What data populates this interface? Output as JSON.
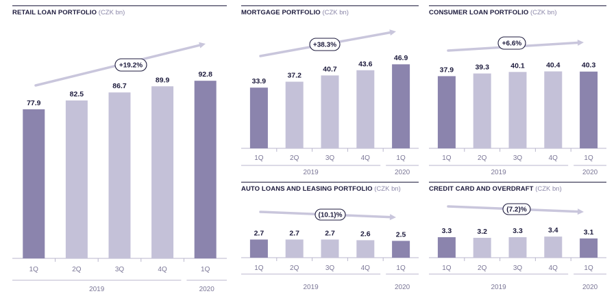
{
  "colors": {
    "bar_light": "#c4c1d8",
    "bar_dark": "#8b84ad",
    "arrow": "#c9c6dc",
    "axis": "#b9b6cc",
    "text": "#1c1a3c"
  },
  "chart_data": [
    {
      "id": "retail",
      "type": "bar",
      "title": "RETAIL LOAN PORTFOLIO",
      "unit": "(CZK bn)",
      "categories": [
        "1Q",
        "2Q",
        "3Q",
        "4Q",
        "1Q"
      ],
      "values": [
        77.9,
        82.5,
        86.7,
        89.9,
        92.8
      ],
      "value_labels": [
        "77.9",
        "82.5",
        "86.7",
        "89.9",
        "92.8"
      ],
      "highlight": [
        true,
        false,
        false,
        false,
        true
      ],
      "year_groups": [
        {
          "label": "2019",
          "span": 4
        },
        {
          "label": "2020",
          "span": 1
        }
      ],
      "growth": "+19.2%",
      "ylim": [
        0,
        100
      ]
    },
    {
      "id": "mortgage",
      "type": "bar",
      "title": "MORTGAGE PORTFOLIO",
      "unit": "(CZK bn)",
      "categories": [
        "1Q",
        "2Q",
        "3Q",
        "4Q",
        "1Q"
      ],
      "values": [
        33.9,
        37.2,
        40.7,
        43.6,
        46.9
      ],
      "value_labels": [
        "33.9",
        "37.2",
        "40.7",
        "43.6",
        "46.9"
      ],
      "highlight": [
        true,
        false,
        false,
        false,
        true
      ],
      "year_groups": [
        {
          "label": "2019",
          "span": 4
        },
        {
          "label": "2020",
          "span": 1
        }
      ],
      "growth": "+38.3%",
      "ylim": [
        0,
        50
      ]
    },
    {
      "id": "consumer",
      "type": "bar",
      "title": "CONSUMER LOAN PORTFOLIO",
      "unit": "(CZK bn)",
      "categories": [
        "1Q",
        "2Q",
        "3Q",
        "4Q",
        "1Q"
      ],
      "values": [
        37.9,
        39.3,
        40.1,
        40.4,
        40.3
      ],
      "value_labels": [
        "37.9",
        "39.3",
        "40.1",
        "40.4",
        "40.3"
      ],
      "highlight": [
        true,
        false,
        false,
        false,
        true
      ],
      "year_groups": [
        {
          "label": "2019",
          "span": 4
        },
        {
          "label": "2020",
          "span": 1
        }
      ],
      "growth": "+6.6%",
      "ylim": [
        0,
        42
      ]
    },
    {
      "id": "auto",
      "type": "bar",
      "title": "AUTO LOANS AND LEASING PORTFOLIO",
      "unit": "(CZK bn)",
      "categories": [
        "1Q",
        "2Q",
        "3Q",
        "4Q",
        "1Q"
      ],
      "values": [
        2.7,
        2.7,
        2.7,
        2.6,
        2.5
      ],
      "value_labels": [
        "2.7",
        "2.7",
        "2.7",
        "2.6",
        "2.5"
      ],
      "highlight": [
        true,
        false,
        false,
        false,
        true
      ],
      "year_groups": [
        {
          "label": "2019",
          "span": 4
        },
        {
          "label": "2020",
          "span": 1
        }
      ],
      "growth": "(10.1)%",
      "ylim": [
        0,
        6
      ]
    },
    {
      "id": "credit",
      "type": "bar",
      "title": "CREDIT CARD AND OVERDRAFT",
      "unit": "(CZK bn)",
      "categories": [
        "1Q",
        "2Q",
        "3Q",
        "4Q",
        "1Q"
      ],
      "values": [
        3.3,
        3.2,
        3.3,
        3.4,
        3.1
      ],
      "value_labels": [
        "3.3",
        "3.2",
        "3.3",
        "3.4",
        "3.1"
      ],
      "highlight": [
        true,
        false,
        false,
        false,
        true
      ],
      "year_groups": [
        {
          "label": "2019",
          "span": 4
        },
        {
          "label": "2020",
          "span": 1
        }
      ],
      "growth": "(7.2)%",
      "ylim": [
        0,
        6.5
      ]
    }
  ]
}
